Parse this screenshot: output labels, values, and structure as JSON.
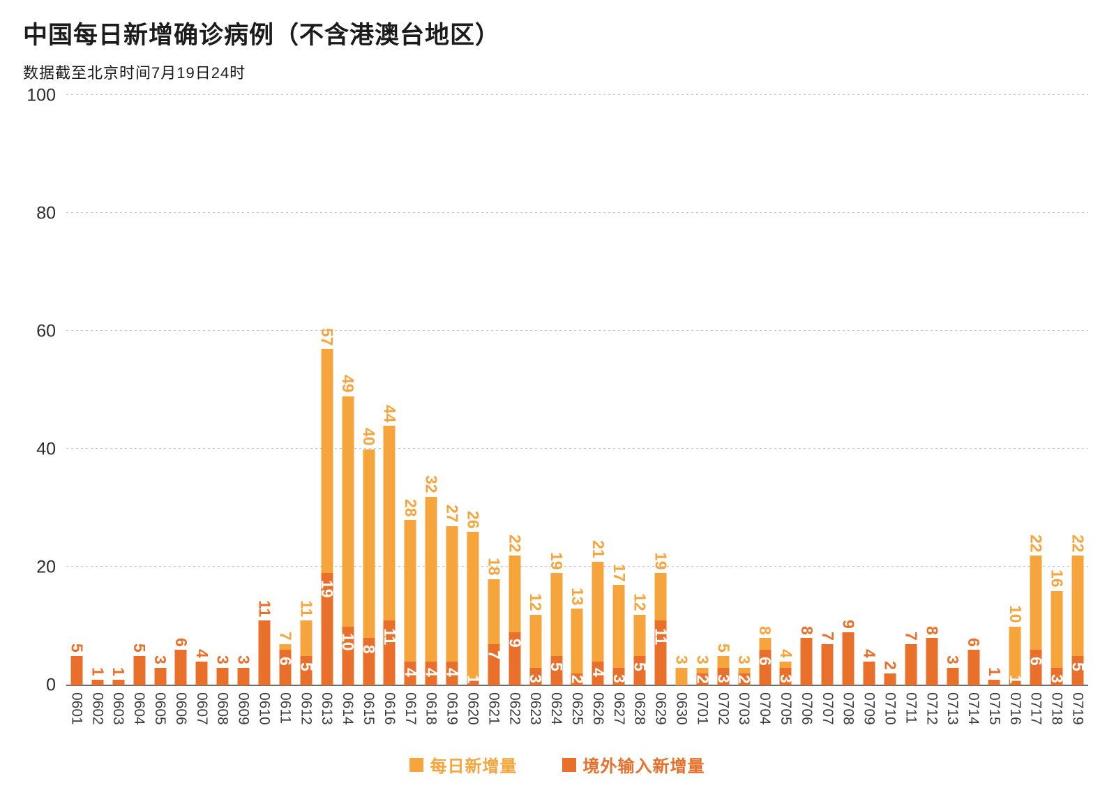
{
  "page": {
    "title": "中国每日新增确诊病例（不含港澳台地区）",
    "subtitle": "数据截至北京时间7月19日24时"
  },
  "legend": {
    "items": [
      {
        "label": "每日新增量",
        "color": "#F6A53C"
      },
      {
        "label": "境外输入新增量",
        "color": "#E8702B"
      }
    ]
  },
  "colors": {
    "daily": "#F6A53C",
    "imported": "#E8702B",
    "inner_label": "#FFFFFF",
    "gridline": "#C7C7C7",
    "baseline": "#6D6D6D",
    "axis_text": "#3C3C3C"
  },
  "chart_data": {
    "type": "bar",
    "stacked": true,
    "title": "中国每日新增确诊病例（不含港澳台地区）",
    "subtitle": "数据截至北京时间7月19日24时",
    "xlabel": "",
    "ylabel": "",
    "ylim": [
      0,
      100
    ],
    "yticks": [
      0,
      20,
      40,
      60,
      80,
      100
    ],
    "grid": "dotted-horizontal",
    "legend_position": "bottom-center",
    "label_style": "values rotated 90° (read top-to-bottom): total above each bar, imported count in white inside dark segment when 0 < imported < total",
    "categories": [
      "0601",
      "0602",
      "0603",
      "0604",
      "0605",
      "0606",
      "0607",
      "0608",
      "0609",
      "0610",
      "0611",
      "0612",
      "0613",
      "0614",
      "0615",
      "0616",
      "0617",
      "0618",
      "0619",
      "0620",
      "0621",
      "0622",
      "0623",
      "0624",
      "0625",
      "0626",
      "0627",
      "0628",
      "0629",
      "0630",
      "0701",
      "0702",
      "0703",
      "0704",
      "0705",
      "0706",
      "0707",
      "0708",
      "0709",
      "0710",
      "0711",
      "0712",
      "0713",
      "0714",
      "0715",
      "0716",
      "0717",
      "0718",
      "0719"
    ],
    "series": [
      {
        "name": "每日新增量",
        "role": "daily-total",
        "color": "#F6A53C",
        "values": [
          5,
          1,
          1,
          5,
          3,
          6,
          4,
          3,
          3,
          11,
          7,
          11,
          57,
          49,
          40,
          44,
          28,
          32,
          27,
          26,
          18,
          22,
          12,
          19,
          13,
          21,
          17,
          12,
          19,
          3,
          3,
          5,
          3,
          8,
          4,
          8,
          7,
          9,
          4,
          2,
          7,
          8,
          3,
          6,
          1,
          10,
          22,
          16,
          22
        ]
      },
      {
        "name": "境外输入新增量",
        "role": "imported",
        "color": "#E8702B",
        "values": [
          5,
          1,
          1,
          5,
          3,
          6,
          4,
          3,
          3,
          11,
          6,
          5,
          19,
          10,
          8,
          11,
          4,
          4,
          4,
          1,
          7,
          9,
          3,
          5,
          2,
          4,
          3,
          5,
          11,
          0,
          2,
          3,
          2,
          6,
          3,
          8,
          7,
          9,
          4,
          2,
          7,
          8,
          3,
          6,
          1,
          1,
          6,
          3,
          5
        ]
      }
    ]
  }
}
